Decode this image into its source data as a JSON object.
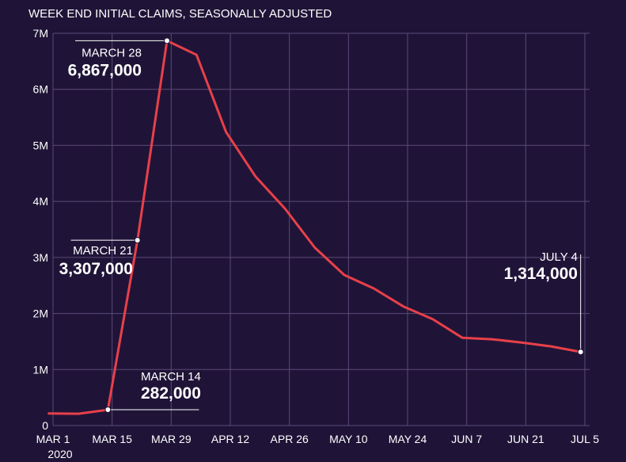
{
  "chart_data": {
    "type": "line",
    "title": "WEEK END INITIAL CLAIMS, SEASONALLY ADJUSTED",
    "xlabel": "",
    "ylabel": "",
    "ylim": [
      0,
      7000000
    ],
    "grid": true,
    "y_ticks": [
      {
        "value": 0,
        "label": "0"
      },
      {
        "value": 1000000,
        "label": "1M"
      },
      {
        "value": 2000000,
        "label": "2M"
      },
      {
        "value": 3000000,
        "label": "3M"
      },
      {
        "value": 4000000,
        "label": "4M"
      },
      {
        "value": 5000000,
        "label": "5M"
      },
      {
        "value": 6000000,
        "label": "6M"
      },
      {
        "value": 7000000,
        "label": "7M"
      }
    ],
    "x_ticks": [
      {
        "date": "2020-03-01",
        "label": "MAR 1",
        "sublabel": "2020"
      },
      {
        "date": "2020-03-15",
        "label": "MAR 15"
      },
      {
        "date": "2020-03-29",
        "label": "MAR 29"
      },
      {
        "date": "2020-04-12",
        "label": "APR 12"
      },
      {
        "date": "2020-04-26",
        "label": "APR 26"
      },
      {
        "date": "2020-05-10",
        "label": "MAY 10"
      },
      {
        "date": "2020-05-24",
        "label": "MAY 24"
      },
      {
        "date": "2020-06-07",
        "label": "JUN 7"
      },
      {
        "date": "2020-06-21",
        "label": "JUN 21"
      },
      {
        "date": "2020-07-05",
        "label": "JUL 5"
      }
    ],
    "series": [
      {
        "color": "#e8404a",
        "points": [
          {
            "x": "2020-02-29",
            "y": 217000
          },
          {
            "x": "2020-03-07",
            "y": 211000
          },
          {
            "x": "2020-03-14",
            "y": 282000
          },
          {
            "x": "2020-03-21",
            "y": 3307000
          },
          {
            "x": "2020-03-28",
            "y": 6867000
          },
          {
            "x": "2020-04-04",
            "y": 6615000
          },
          {
            "x": "2020-04-11",
            "y": 5237000
          },
          {
            "x": "2020-04-18",
            "y": 4442000
          },
          {
            "x": "2020-04-25",
            "y": 3867000
          },
          {
            "x": "2020-05-02",
            "y": 3176000
          },
          {
            "x": "2020-05-09",
            "y": 2687000
          },
          {
            "x": "2020-05-16",
            "y": 2446000
          },
          {
            "x": "2020-05-23",
            "y": 2126000
          },
          {
            "x": "2020-05-30",
            "y": 1897000
          },
          {
            "x": "2020-06-06",
            "y": 1566000
          },
          {
            "x": "2020-06-13",
            "y": 1540000
          },
          {
            "x": "2020-06-20",
            "y": 1482000
          },
          {
            "x": "2020-06-27",
            "y": 1413000
          },
          {
            "x": "2020-07-04",
            "y": 1314000
          }
        ]
      }
    ],
    "annotations": [
      {
        "x": "2020-03-14",
        "y": 282000,
        "label": "MARCH 14",
        "value": "282,000"
      },
      {
        "x": "2020-03-21",
        "y": 3307000,
        "label": "MARCH 21",
        "value": "3,307,000"
      },
      {
        "x": "2020-03-28",
        "y": 6867000,
        "label": "MARCH 28",
        "value": "6,867,000"
      },
      {
        "x": "2020-07-04",
        "y": 1314000,
        "label": "JULY 4",
        "value": "1,314,000"
      }
    ],
    "colors": {
      "background": "#1f1437",
      "grid": "#5a4a78",
      "line": "#e8404a",
      "text": "#ffffff"
    }
  }
}
